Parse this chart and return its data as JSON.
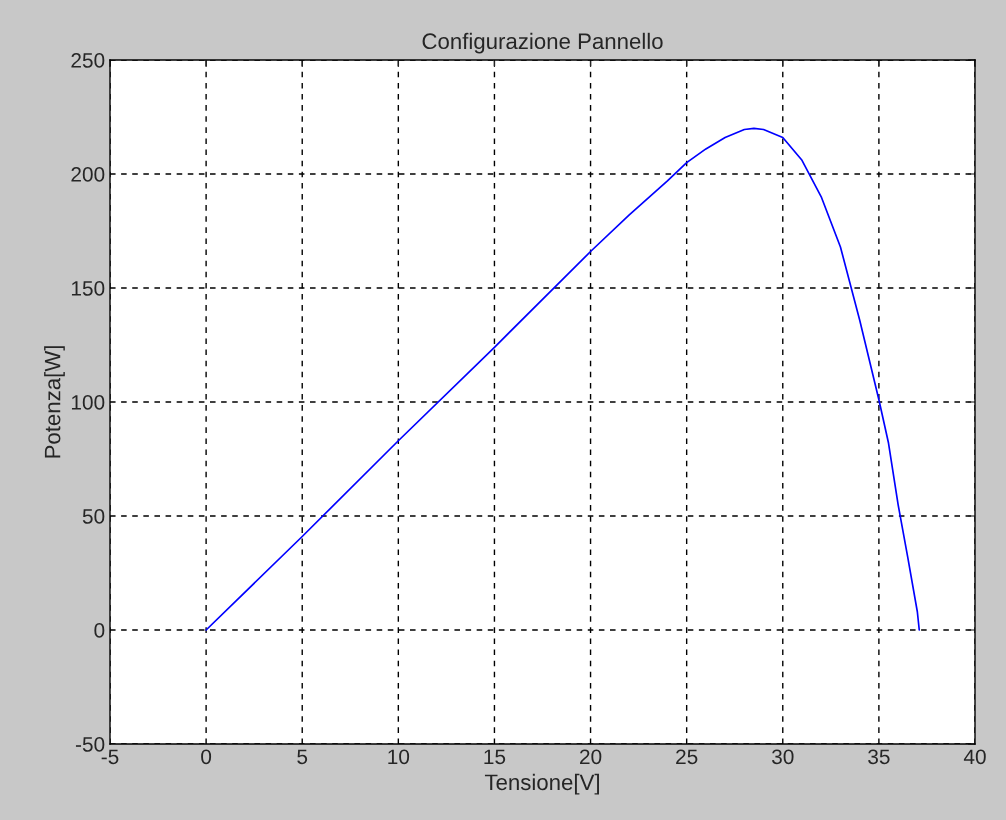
{
  "chart_data": {
    "type": "line",
    "title": "Configurazione Pannello",
    "xlabel": "Tensione[V]",
    "ylabel": "Potenza[W]",
    "series": [
      {
        "color": "#0000ff",
        "x": [
          0,
          5,
          10,
          15,
          20,
          22,
          24,
          25,
          26,
          27,
          28,
          28.5,
          29,
          30,
          31,
          32,
          33,
          34,
          35,
          35.5,
          36,
          36.5,
          37,
          37.1
        ],
        "values": [
          0,
          41,
          83,
          124,
          166,
          182,
          197,
          205,
          211,
          216,
          219.5,
          220,
          219.5,
          216,
          206,
          190,
          168,
          136,
          101,
          82,
          55,
          32,
          8,
          0
        ]
      }
    ],
    "xlim": [
      -5,
      40
    ],
    "xticks": [
      -5,
      0,
      5,
      10,
      15,
      20,
      25,
      30,
      35,
      40
    ],
    "ylim": [
      -50,
      250
    ],
    "yticks": [
      -50,
      0,
      50,
      100,
      150,
      200,
      250
    ],
    "grid": true,
    "marker": "none",
    "line_style": "solid"
  }
}
